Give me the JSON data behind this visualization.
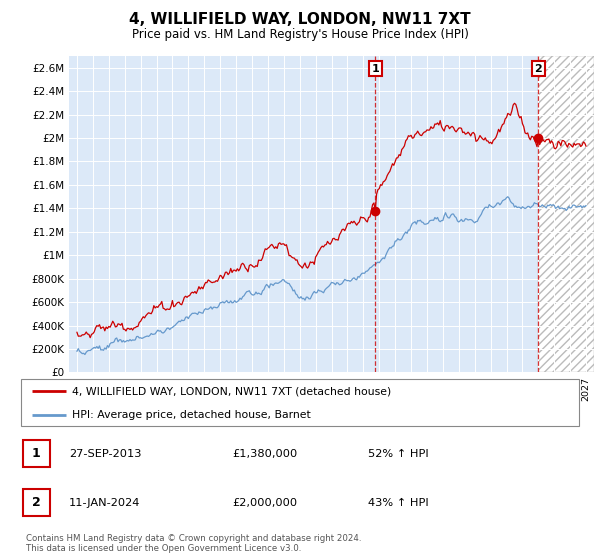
{
  "title": "4, WILLIFIELD WAY, LONDON, NW11 7XT",
  "subtitle": "Price paid vs. HM Land Registry's House Price Index (HPI)",
  "ylabel_ticks": [
    "£0",
    "£200K",
    "£400K",
    "£600K",
    "£800K",
    "£1M",
    "£1.2M",
    "£1.4M",
    "£1.6M",
    "£1.8M",
    "£2M",
    "£2.2M",
    "£2.4M",
    "£2.6M"
  ],
  "ylim": [
    0,
    2700000
  ],
  "ytick_values": [
    0,
    200000,
    400000,
    600000,
    800000,
    1000000,
    1200000,
    1400000,
    1600000,
    1800000,
    2000000,
    2200000,
    2400000,
    2600000
  ],
  "background_color": "#dce9f8",
  "hatch_color": "#cccccc",
  "red_line_color": "#cc0000",
  "blue_line_color": "#6699cc",
  "vline_color": "#cc0000",
  "legend_label_red": "4, WILLIFIELD WAY, LONDON, NW11 7XT (detached house)",
  "legend_label_blue": "HPI: Average price, detached house, Barnet",
  "transaction1_label": "1",
  "transaction1_date": "27-SEP-2013",
  "transaction1_price": "£1,380,000",
  "transaction1_hpi": "52% ↑ HPI",
  "transaction2_label": "2",
  "transaction2_date": "11-JAN-2024",
  "transaction2_price": "£2,000,000",
  "transaction2_hpi": "43% ↑ HPI",
  "footer": "Contains HM Land Registry data © Crown copyright and database right 2024.\nThis data is licensed under the Open Government Licence v3.0.",
  "t1_year": 2013.75,
  "t2_year": 2024.04,
  "xmin": 1994.5,
  "xmax": 2027.5
}
